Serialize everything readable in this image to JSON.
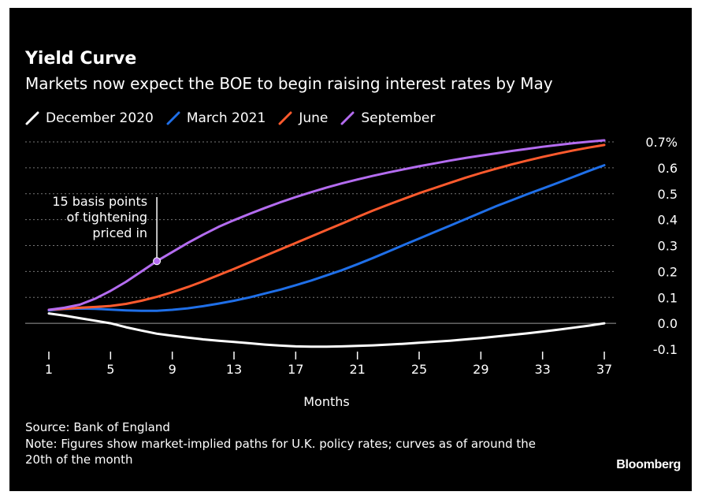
{
  "title": "Yield Curve",
  "subtitle": "Markets now expect the BOE to begin raising interest rates by May",
  "source": "Source: Bank of England",
  "note": "Note: Figures show market-implied paths for U.K. policy rates; curves as of around the 20th of the month",
  "logo": "Bloomberg",
  "chart_data": {
    "type": "line",
    "xlabel": "Months",
    "ylabel": "",
    "x": [
      1,
      2,
      3,
      4,
      5,
      6,
      7,
      8,
      9,
      10,
      11,
      12,
      13,
      14,
      15,
      16,
      17,
      18,
      19,
      20,
      21,
      22,
      23,
      24,
      25,
      26,
      27,
      28,
      29,
      30,
      31,
      32,
      33,
      34,
      35,
      36,
      37
    ],
    "xticks": [
      1,
      5,
      9,
      13,
      17,
      21,
      25,
      29,
      33,
      37
    ],
    "yticks": [
      -0.1,
      0.0,
      0.1,
      0.2,
      0.3,
      0.4,
      0.5,
      0.6,
      0.7
    ],
    "ytick_labels": [
      "-0.1",
      "0.0",
      "0.1",
      "0.2",
      "0.3",
      "0.4",
      "0.5",
      "0.6",
      "0.7%"
    ],
    "xlim": [
      1,
      37
    ],
    "ylim": [
      -0.1,
      0.7
    ],
    "grid": true,
    "legend_position": "top-left",
    "series": [
      {
        "name": "December 2020",
        "color": "#ffffff",
        "values": [
          0.038,
          0.03,
          0.02,
          0.01,
          0.0,
          -0.015,
          -0.028,
          -0.04,
          -0.048,
          -0.055,
          -0.062,
          -0.067,
          -0.072,
          -0.077,
          -0.082,
          -0.086,
          -0.089,
          -0.09,
          -0.09,
          -0.089,
          -0.087,
          -0.085,
          -0.082,
          -0.079,
          -0.075,
          -0.071,
          -0.067,
          -0.062,
          -0.057,
          -0.051,
          -0.045,
          -0.039,
          -0.032,
          -0.025,
          -0.017,
          -0.009,
          0.0
        ]
      },
      {
        "name": "March 2021",
        "color": "#1f6fe8",
        "values": [
          0.05,
          0.055,
          0.057,
          0.056,
          0.053,
          0.05,
          0.048,
          0.048,
          0.052,
          0.058,
          0.066,
          0.076,
          0.087,
          0.1,
          0.115,
          0.13,
          0.147,
          0.165,
          0.185,
          0.205,
          0.228,
          0.252,
          0.277,
          0.302,
          0.327,
          0.352,
          0.377,
          0.402,
          0.427,
          0.452,
          0.475,
          0.498,
          0.52,
          0.542,
          0.565,
          0.588,
          0.61
        ]
      },
      {
        "name": "June",
        "color": "#ff5a2d",
        "values": [
          0.052,
          0.056,
          0.06,
          0.063,
          0.067,
          0.075,
          0.087,
          0.102,
          0.12,
          0.14,
          0.162,
          0.186,
          0.21,
          0.235,
          0.26,
          0.285,
          0.31,
          0.335,
          0.36,
          0.385,
          0.41,
          0.435,
          0.458,
          0.48,
          0.502,
          0.522,
          0.542,
          0.562,
          0.58,
          0.597,
          0.613,
          0.628,
          0.642,
          0.655,
          0.667,
          0.678,
          0.688
        ]
      },
      {
        "name": "September",
        "color": "#b46cf0",
        "values": [
          0.052,
          0.06,
          0.072,
          0.095,
          0.125,
          0.16,
          0.2,
          0.24,
          0.275,
          0.31,
          0.342,
          0.372,
          0.398,
          0.422,
          0.445,
          0.467,
          0.487,
          0.506,
          0.524,
          0.54,
          0.555,
          0.569,
          0.582,
          0.594,
          0.606,
          0.617,
          0.628,
          0.638,
          0.647,
          0.656,
          0.665,
          0.673,
          0.681,
          0.688,
          0.695,
          0.701,
          0.706
        ]
      }
    ],
    "annotations": [
      {
        "text_lines": [
          "15 basis points",
          "of tightening",
          "priced in"
        ],
        "series": "September",
        "x": 8,
        "y": 0.24
      }
    ]
  }
}
